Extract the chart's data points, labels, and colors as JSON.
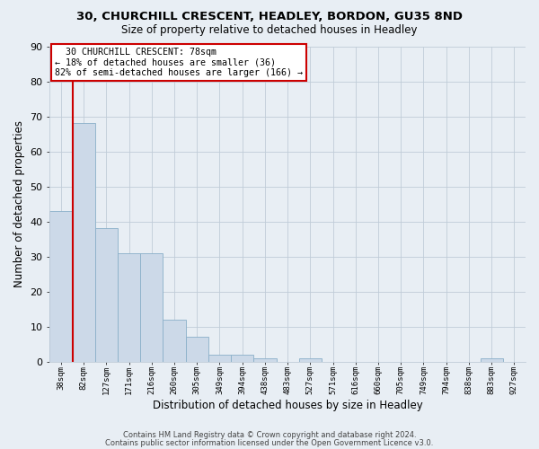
{
  "title1": "30, CHURCHILL CRESCENT, HEADLEY, BORDON, GU35 8ND",
  "title2": "Size of property relative to detached houses in Headley",
  "xlabel": "Distribution of detached houses by size in Headley",
  "ylabel": "Number of detached properties",
  "footer1": "Contains HM Land Registry data © Crown copyright and database right 2024.",
  "footer2": "Contains public sector information licensed under the Open Government Licence v3.0.",
  "annotation_line1": "  30 CHURCHILL CRESCENT: 78sqm  ",
  "annotation_line2": "← 18% of detached houses are smaller (36)",
  "annotation_line3": "82% of semi-detached houses are larger (166) →",
  "bar_color": "#ccd9e8",
  "bar_edge_color": "#8aafc8",
  "vline_color": "#cc0000",
  "background_color": "#e8eef4",
  "categories": [
    "38sqm",
    "82sqm",
    "127sqm",
    "171sqm",
    "216sqm",
    "260sqm",
    "305sqm",
    "349sqm",
    "394sqm",
    "438sqm",
    "483sqm",
    "527sqm",
    "571sqm",
    "616sqm",
    "660sqm",
    "705sqm",
    "749sqm",
    "794sqm",
    "838sqm",
    "883sqm",
    "927sqm"
  ],
  "values": [
    43,
    68,
    38,
    31,
    31,
    12,
    7,
    2,
    2,
    1,
    0,
    1,
    0,
    0,
    0,
    0,
    0,
    0,
    0,
    1,
    0
  ],
  "ylim": [
    0,
    90
  ],
  "yticks": [
    0,
    10,
    20,
    30,
    40,
    50,
    60,
    70,
    80,
    90
  ],
  "grid_color": "#c0ccd8",
  "annotation_box_facecolor": "#ffffff",
  "annotation_box_edgecolor": "#cc0000",
  "vline_x_bar_index": 1
}
